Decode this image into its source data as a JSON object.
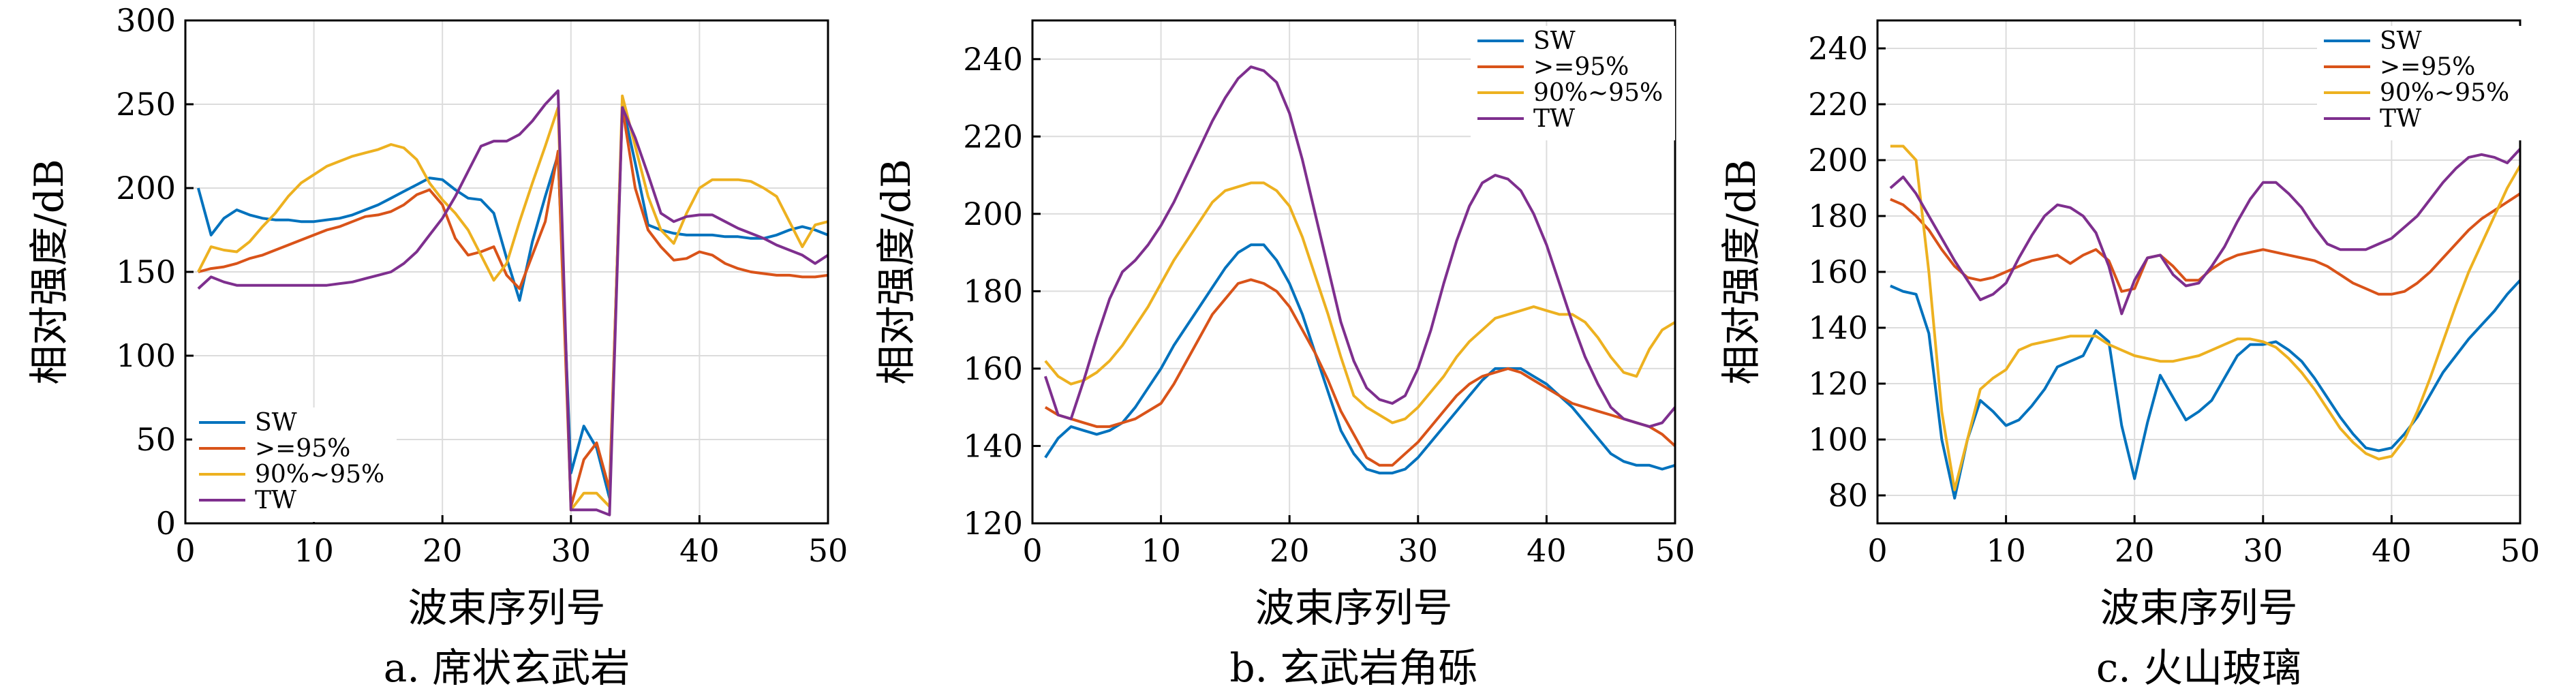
{
  "chart_data": [
    {
      "type": "line",
      "caption": "a. 席状玄武岩",
      "xlabel": "波束序列号",
      "ylabel": "相对强度/dB",
      "xlim": [
        0,
        50
      ],
      "ylim": [
        0,
        300
      ],
      "xticks": [
        0,
        10,
        20,
        30,
        40,
        50
      ],
      "yticks": [
        0,
        50,
        100,
        150,
        200,
        250,
        300
      ],
      "grid": true,
      "legend_position": "bottom-left",
      "x": [
        1,
        2,
        3,
        4,
        5,
        6,
        7,
        8,
        9,
        10,
        11,
        12,
        13,
        14,
        15,
        16,
        17,
        18,
        19,
        20,
        21,
        22,
        23,
        24,
        25,
        26,
        27,
        28,
        29,
        30,
        31,
        32,
        33,
        34,
        35,
        36,
        37,
        38,
        39,
        40,
        41,
        42,
        43,
        44,
        45,
        46,
        47,
        48,
        49,
        50
      ],
      "series": [
        {
          "name": "SW",
          "color": "#0072BD",
          "values": [
            200,
            172,
            182,
            187,
            184,
            182,
            181,
            181,
            180,
            180,
            181,
            182,
            184,
            187,
            190,
            194,
            198,
            202,
            206,
            205,
            199,
            194,
            193,
            185,
            158,
            133,
            168,
            195,
            220,
            30,
            58,
            45,
            15,
            250,
            215,
            178,
            175,
            173,
            172,
            172,
            172,
            171,
            171,
            170,
            170,
            172,
            175,
            177,
            175,
            172
          ]
        },
        {
          "name": ">=95%",
          "color": "#D95319",
          "values": [
            150,
            152,
            153,
            155,
            158,
            160,
            163,
            166,
            169,
            172,
            175,
            177,
            180,
            183,
            184,
            186,
            190,
            196,
            199,
            190,
            170,
            160,
            162,
            165,
            148,
            140,
            160,
            180,
            222,
            10,
            38,
            48,
            20,
            248,
            200,
            175,
            165,
            157,
            158,
            162,
            160,
            155,
            152,
            150,
            149,
            148,
            148,
            147,
            147,
            148
          ]
        },
        {
          "name": "90%~95%",
          "color": "#EDB120",
          "values": [
            150,
            165,
            163,
            162,
            168,
            177,
            185,
            195,
            203,
            208,
            213,
            216,
            219,
            221,
            223,
            226,
            224,
            217,
            203,
            193,
            185,
            175,
            160,
            145,
            155,
            180,
            203,
            225,
            248,
            8,
            18,
            18,
            10,
            255,
            225,
            195,
            175,
            167,
            185,
            200,
            205,
            205,
            205,
            204,
            200,
            195,
            180,
            165,
            178,
            180
          ]
        },
        {
          "name": "TW",
          "color": "#7E2F8E",
          "values": [
            140,
            147,
            144,
            142,
            142,
            142,
            142,
            142,
            142,
            142,
            142,
            143,
            144,
            146,
            148,
            150,
            155,
            162,
            172,
            182,
            195,
            210,
            225,
            228,
            228,
            232,
            240,
            250,
            258,
            8,
            8,
            8,
            5,
            248,
            230,
            208,
            185,
            180,
            183,
            184,
            184,
            180,
            176,
            173,
            170,
            166,
            163,
            160,
            155,
            160
          ]
        }
      ]
    },
    {
      "type": "line",
      "caption": "b. 玄武岩角砾",
      "xlabel": "波束序列号",
      "ylabel": "相对强度/dB",
      "xlim": [
        0,
        50
      ],
      "ylim": [
        120,
        250
      ],
      "xticks": [
        0,
        10,
        20,
        30,
        40,
        50
      ],
      "yticks": [
        120,
        140,
        160,
        180,
        200,
        220,
        240
      ],
      "grid": true,
      "legend_position": "top-right",
      "x": [
        1,
        2,
        3,
        4,
        5,
        6,
        7,
        8,
        9,
        10,
        11,
        12,
        13,
        14,
        15,
        16,
        17,
        18,
        19,
        20,
        21,
        22,
        23,
        24,
        25,
        26,
        27,
        28,
        29,
        30,
        31,
        32,
        33,
        34,
        35,
        36,
        37,
        38,
        39,
        40,
        41,
        42,
        43,
        44,
        45,
        46,
        47,
        48,
        49,
        50
      ],
      "series": [
        {
          "name": "SW",
          "color": "#0072BD",
          "values": [
            137,
            142,
            145,
            144,
            143,
            144,
            146,
            150,
            155,
            160,
            166,
            171,
            176,
            181,
            186,
            190,
            192,
            192,
            188,
            182,
            174,
            164,
            154,
            144,
            138,
            134,
            133,
            133,
            134,
            137,
            141,
            145,
            149,
            153,
            157,
            160,
            160,
            160,
            158,
            156,
            153,
            150,
            146,
            142,
            138,
            136,
            135,
            135,
            134,
            135
          ]
        },
        {
          "name": ">=95%",
          "color": "#D95319",
          "values": [
            150,
            148,
            147,
            146,
            145,
            145,
            146,
            147,
            149,
            151,
            156,
            162,
            168,
            174,
            178,
            182,
            183,
            182,
            180,
            176,
            170,
            164,
            157,
            149,
            143,
            137,
            135,
            135,
            138,
            141,
            145,
            149,
            153,
            156,
            158,
            159,
            160,
            159,
            157,
            155,
            153,
            151,
            150,
            149,
            148,
            147,
            146,
            145,
            143,
            140
          ]
        },
        {
          "name": "90%~95%",
          "color": "#EDB120",
          "values": [
            162,
            158,
            156,
            157,
            159,
            162,
            166,
            171,
            176,
            182,
            188,
            193,
            198,
            203,
            206,
            207,
            208,
            208,
            206,
            202,
            194,
            184,
            174,
            163,
            153,
            150,
            148,
            146,
            147,
            150,
            154,
            158,
            163,
            167,
            170,
            173,
            174,
            175,
            176,
            175,
            174,
            174,
            172,
            168,
            163,
            159,
            158,
            165,
            170,
            172
          ]
        },
        {
          "name": "TW",
          "color": "#7E2F8E",
          "values": [
            158,
            148,
            147,
            157,
            168,
            178,
            185,
            188,
            192,
            197,
            203,
            210,
            217,
            224,
            230,
            235,
            238,
            237,
            234,
            226,
            214,
            200,
            186,
            172,
            162,
            155,
            152,
            151,
            153,
            160,
            170,
            182,
            193,
            202,
            208,
            210,
            209,
            206,
            200,
            192,
            182,
            172,
            163,
            156,
            150,
            147,
            146,
            145,
            146,
            150
          ]
        }
      ]
    },
    {
      "type": "line",
      "caption": "c. 火山玻璃",
      "xlabel": "波束序列号",
      "ylabel": "相对强度/dB",
      "xlim": [
        0,
        50
      ],
      "ylim": [
        70,
        250
      ],
      "xticks": [
        0,
        10,
        20,
        30,
        40,
        50
      ],
      "yticks": [
        80,
        100,
        120,
        140,
        160,
        180,
        200,
        220,
        240
      ],
      "grid": true,
      "legend_position": "top-right",
      "x": [
        1,
        2,
        3,
        4,
        5,
        6,
        7,
        8,
        9,
        10,
        11,
        12,
        13,
        14,
        15,
        16,
        17,
        18,
        19,
        20,
        21,
        22,
        23,
        24,
        25,
        26,
        27,
        28,
        29,
        30,
        31,
        32,
        33,
        34,
        35,
        36,
        37,
        38,
        39,
        40,
        41,
        42,
        43,
        44,
        45,
        46,
        47,
        48,
        49,
        50
      ],
      "series": [
        {
          "name": "SW",
          "color": "#0072BD",
          "values": [
            155,
            153,
            152,
            138,
            100,
            79,
            100,
            114,
            110,
            105,
            107,
            112,
            118,
            126,
            128,
            130,
            139,
            135,
            105,
            86,
            106,
            123,
            115,
            107,
            110,
            114,
            122,
            130,
            134,
            134,
            135,
            132,
            128,
            122,
            115,
            108,
            102,
            97,
            96,
            97,
            102,
            108,
            116,
            124,
            130,
            136,
            141,
            146,
            152,
            157
          ]
        },
        {
          "name": ">=95%",
          "color": "#D95319",
          "values": [
            186,
            184,
            180,
            175,
            168,
            162,
            158,
            157,
            158,
            160,
            162,
            164,
            165,
            166,
            163,
            166,
            168,
            164,
            153,
            154,
            165,
            166,
            162,
            157,
            157,
            161,
            164,
            166,
            167,
            168,
            167,
            166,
            165,
            164,
            162,
            159,
            156,
            154,
            152,
            152,
            153,
            156,
            160,
            165,
            170,
            175,
            179,
            182,
            185,
            188
          ]
        },
        {
          "name": "90%~95%",
          "color": "#EDB120",
          "values": [
            205,
            205,
            200,
            160,
            110,
            82,
            100,
            118,
            122,
            125,
            132,
            134,
            135,
            136,
            137,
            137,
            137,
            134,
            132,
            130,
            129,
            128,
            128,
            129,
            130,
            132,
            134,
            136,
            136,
            135,
            133,
            129,
            124,
            118,
            111,
            104,
            99,
            95,
            93,
            94,
            100,
            110,
            122,
            135,
            148,
            160,
            170,
            180,
            190,
            198
          ]
        },
        {
          "name": "TW",
          "color": "#7E2F8E",
          "values": [
            190,
            194,
            188,
            180,
            172,
            164,
            157,
            150,
            152,
            156,
            165,
            173,
            180,
            184,
            183,
            180,
            174,
            162,
            145,
            157,
            165,
            166,
            159,
            155,
            156,
            162,
            169,
            178,
            186,
            192,
            192,
            188,
            183,
            176,
            170,
            168,
            168,
            168,
            170,
            172,
            176,
            180,
            186,
            192,
            197,
            201,
            202,
            201,
            199,
            204
          ]
        }
      ]
    }
  ]
}
